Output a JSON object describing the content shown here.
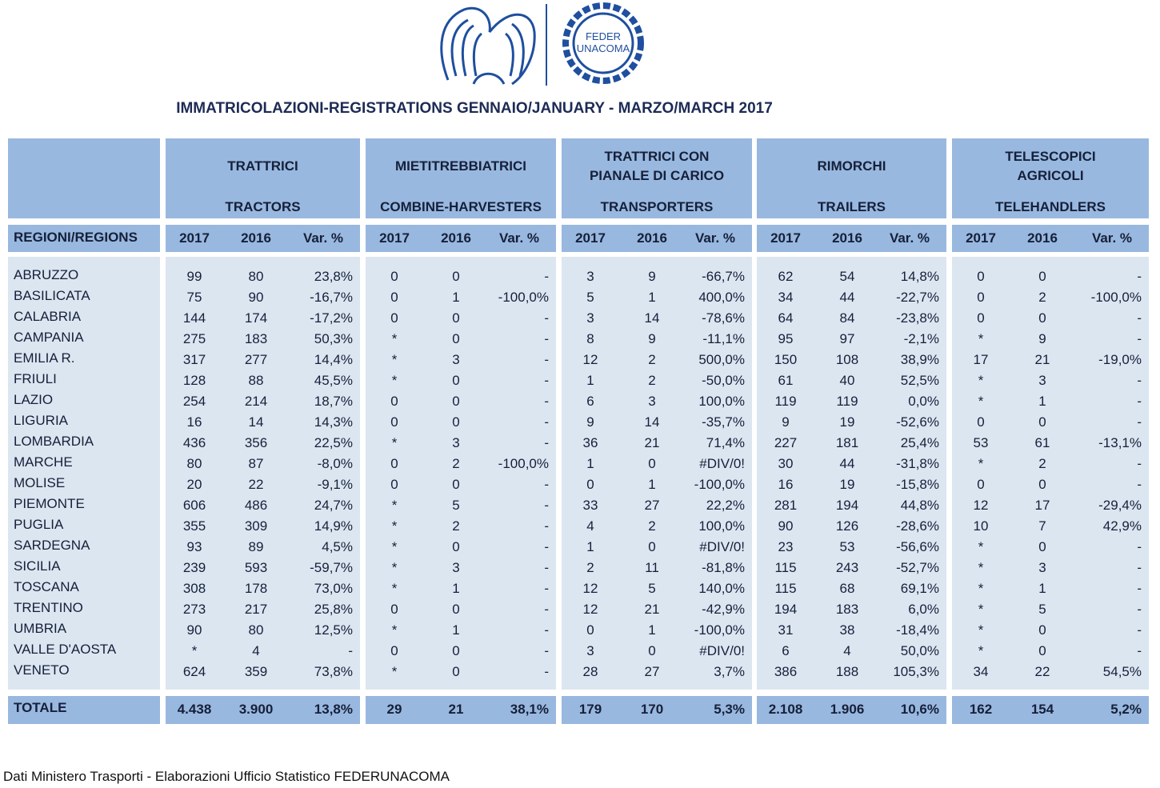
{
  "logo": {
    "lines": [
      "FEDER",
      "UNACOMA"
    ]
  },
  "title": "IMMATRICOLAZIONI-REGISTRATIONS GENNAIO/JANUARY - MARZO/MARCH 2017",
  "table": {
    "groups": [
      {
        "it": "TRATTRICI",
        "en": "TRACTORS"
      },
      {
        "it": "MIETITREBBIATRICI",
        "en": "COMBINE-HARVESTERS"
      },
      {
        "it": "TRATTRICI CON PIANALE DI CARICO",
        "en": "TRANSPORTERS"
      },
      {
        "it": "RIMORCHI",
        "en": "TRAILERS"
      },
      {
        "it": "TELESCOPICI AGRICOLI",
        "en": "TELEHANDLERS"
      }
    ],
    "subheader": {
      "label": "REGIONI/REGIONS",
      "columns": [
        "2017",
        "2016",
        "Var. %"
      ]
    },
    "rows": [
      [
        "ABRUZZO",
        "99",
        "80",
        "23,8%",
        "0",
        "0",
        "-",
        "3",
        "9",
        "-66,7%",
        "62",
        "54",
        "14,8%",
        "0",
        "0",
        "-"
      ],
      [
        "BASILICATA",
        "75",
        "90",
        "-16,7%",
        "0",
        "1",
        "-100,0%",
        "5",
        "1",
        "400,0%",
        "34",
        "44",
        "-22,7%",
        "0",
        "2",
        "-100,0%"
      ],
      [
        "CALABRIA",
        "144",
        "174",
        "-17,2%",
        "0",
        "0",
        "-",
        "3",
        "14",
        "-78,6%",
        "64",
        "84",
        "-23,8%",
        "0",
        "0",
        "-"
      ],
      [
        "CAMPANIA",
        "275",
        "183",
        "50,3%",
        "*",
        "0",
        "-",
        "8",
        "9",
        "-11,1%",
        "95",
        "97",
        "-2,1%",
        "*",
        "9",
        "-"
      ],
      [
        "EMILIA R.",
        "317",
        "277",
        "14,4%",
        "*",
        "3",
        "-",
        "12",
        "2",
        "500,0%",
        "150",
        "108",
        "38,9%",
        "17",
        "21",
        "-19,0%"
      ],
      [
        "FRIULI",
        "128",
        "88",
        "45,5%",
        "*",
        "0",
        "-",
        "1",
        "2",
        "-50,0%",
        "61",
        "40",
        "52,5%",
        "*",
        "3",
        "-"
      ],
      [
        "LAZIO",
        "254",
        "214",
        "18,7%",
        "0",
        "0",
        "-",
        "6",
        "3",
        "100,0%",
        "119",
        "119",
        "0,0%",
        "*",
        "1",
        "-"
      ],
      [
        "LIGURIA",
        "16",
        "14",
        "14,3%",
        "0",
        "0",
        "-",
        "9",
        "14",
        "-35,7%",
        "9",
        "19",
        "-52,6%",
        "0",
        "0",
        "-"
      ],
      [
        "LOMBARDIA",
        "436",
        "356",
        "22,5%",
        "*",
        "3",
        "-",
        "36",
        "21",
        "71,4%",
        "227",
        "181",
        "25,4%",
        "53",
        "61",
        "-13,1%"
      ],
      [
        "MARCHE",
        "80",
        "87",
        "-8,0%",
        "0",
        "2",
        "-100,0%",
        "1",
        "0",
        "#DIV/0!",
        "30",
        "44",
        "-31,8%",
        "*",
        "2",
        "-"
      ],
      [
        "MOLISE",
        "20",
        "22",
        "-9,1%",
        "0",
        "0",
        "-",
        "0",
        "1",
        "-100,0%",
        "16",
        "19",
        "-15,8%",
        "0",
        "0",
        "-"
      ],
      [
        "PIEMONTE",
        "606",
        "486",
        "24,7%",
        "*",
        "5",
        "-",
        "33",
        "27",
        "22,2%",
        "281",
        "194",
        "44,8%",
        "12",
        "17",
        "-29,4%"
      ],
      [
        "PUGLIA",
        "355",
        "309",
        "14,9%",
        "*",
        "2",
        "-",
        "4",
        "2",
        "100,0%",
        "90",
        "126",
        "-28,6%",
        "10",
        "7",
        "42,9%"
      ],
      [
        "SARDEGNA",
        "93",
        "89",
        "4,5%",
        "*",
        "0",
        "-",
        "1",
        "0",
        "#DIV/0!",
        "23",
        "53",
        "-56,6%",
        "*",
        "0",
        "-"
      ],
      [
        "SICILIA",
        "239",
        "593",
        "-59,7%",
        "*",
        "3",
        "-",
        "2",
        "11",
        "-81,8%",
        "115",
        "243",
        "-52,7%",
        "*",
        "3",
        "-"
      ],
      [
        "TOSCANA",
        "308",
        "178",
        "73,0%",
        "*",
        "1",
        "-",
        "12",
        "5",
        "140,0%",
        "115",
        "68",
        "69,1%",
        "*",
        "1",
        "-"
      ],
      [
        "TRENTINO",
        "273",
        "217",
        "25,8%",
        "0",
        "0",
        "-",
        "12",
        "21",
        "-42,9%",
        "194",
        "183",
        "6,0%",
        "*",
        "5",
        "-"
      ],
      [
        "UMBRIA",
        "90",
        "80",
        "12,5%",
        "*",
        "1",
        "-",
        "0",
        "1",
        "-100,0%",
        "31",
        "38",
        "-18,4%",
        "*",
        "0",
        "-"
      ],
      [
        "VALLE D'AOSTA",
        "*",
        "4",
        "-",
        "0",
        "0",
        "-",
        "3",
        "0",
        "#DIV/0!",
        "6",
        "4",
        "50,0%",
        "*",
        "0",
        "-"
      ],
      [
        "VENETO",
        "624",
        "359",
        "73,8%",
        "*",
        "0",
        "-",
        "28",
        "27",
        "3,7%",
        "386",
        "188",
        "105,3%",
        "34",
        "22",
        "54,5%"
      ]
    ],
    "total": [
      "TOTALE",
      "4.438",
      "3.900",
      "13,8%",
      "29",
      "21",
      "38,1%",
      "179",
      "170",
      "5,3%",
      "2.108",
      "1.906",
      "10,6%",
      "162",
      "154",
      "5,2%"
    ]
  },
  "footer": "Dati Ministero Trasporti - Elaborazioni Ufficio Statistico FEDERUNACOMA"
}
